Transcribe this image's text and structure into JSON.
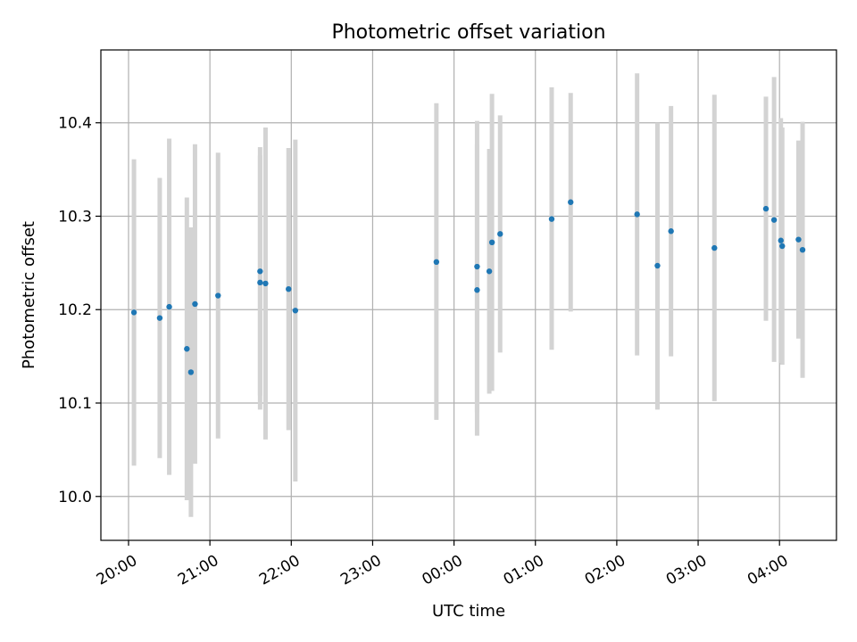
{
  "chart_data": {
    "type": "scatter",
    "title": "Photometric offset variation",
    "xlabel": "UTC time",
    "ylabel": "Photometric offset",
    "x_tick_labels": [
      "20:00",
      "21:00",
      "22:00",
      "23:00",
      "00:00",
      "01:00",
      "02:00",
      "03:00",
      "04:00"
    ],
    "x_tick_hours": [
      20,
      21,
      22,
      23,
      24,
      25,
      26,
      27,
      28
    ],
    "xlim_hours": [
      19.66,
      28.7
    ],
    "y_tick_labels": [
      "10.0",
      "10.1",
      "10.2",
      "10.3",
      "10.4"
    ],
    "y_ticks": [
      10.0,
      10.1,
      10.2,
      10.3,
      10.4
    ],
    "ylim": [
      9.953,
      10.478
    ],
    "grid": true,
    "marker_color": "#1f77b4",
    "errorbar_color": "#d3d3d3",
    "series": [
      {
        "points": [
          {
            "t": "20:04",
            "y": 10.197,
            "lo": 10.033,
            "hi": 10.361
          },
          {
            "t": "20:23",
            "y": 10.191,
            "lo": 10.041,
            "hi": 10.341
          },
          {
            "t": "20:30",
            "y": 10.203,
            "lo": 10.023,
            "hi": 10.383
          },
          {
            "t": "20:43",
            "y": 10.158,
            "lo": 9.996,
            "hi": 10.32
          },
          {
            "t": "20:46",
            "y": 10.133,
            "lo": 9.978,
            "hi": 10.288
          },
          {
            "t": "20:49",
            "y": 10.206,
            "lo": 10.035,
            "hi": 10.377
          },
          {
            "t": "21:06",
            "y": 10.215,
            "lo": 10.062,
            "hi": 10.368
          },
          {
            "t": "21:37",
            "y": 10.241,
            "lo": 10.108,
            "hi": 10.374
          },
          {
            "t": "21:37",
            "y": 10.229,
            "lo": 10.093,
            "hi": 10.365
          },
          {
            "t": "21:41",
            "y": 10.228,
            "lo": 10.061,
            "hi": 10.395
          },
          {
            "t": "21:58",
            "y": 10.222,
            "lo": 10.071,
            "hi": 10.373
          },
          {
            "t": "22:03",
            "y": 10.199,
            "lo": 10.016,
            "hi": 10.382
          },
          {
            "t": "23:47",
            "y": 10.251,
            "lo": 10.082,
            "hi": 10.421
          },
          {
            "t": "00:17",
            "y": 10.221,
            "lo": 10.065,
            "hi": 10.377
          },
          {
            "t": "00:17",
            "y": 10.246,
            "lo": 10.09,
            "hi": 10.402
          },
          {
            "t": "00:26",
            "y": 10.241,
            "lo": 10.11,
            "hi": 10.372
          },
          {
            "t": "00:28",
            "y": 10.272,
            "lo": 10.113,
            "hi": 10.431
          },
          {
            "t": "00:34",
            "y": 10.281,
            "lo": 10.154,
            "hi": 10.408
          },
          {
            "t": "01:12",
            "y": 10.297,
            "lo": 10.157,
            "hi": 10.438
          },
          {
            "t": "01:26",
            "y": 10.315,
            "lo": 10.198,
            "hi": 10.432
          },
          {
            "t": "02:15",
            "y": 10.302,
            "lo": 10.151,
            "hi": 10.453
          },
          {
            "t": "02:30",
            "y": 10.247,
            "lo": 10.093,
            "hi": 10.4
          },
          {
            "t": "02:40",
            "y": 10.284,
            "lo": 10.15,
            "hi": 10.418
          },
          {
            "t": "03:12",
            "y": 10.266,
            "lo": 10.102,
            "hi": 10.43
          },
          {
            "t": "03:50",
            "y": 10.308,
            "lo": 10.188,
            "hi": 10.428
          },
          {
            "t": "03:56",
            "y": 10.296,
            "lo": 10.144,
            "hi": 10.449
          },
          {
            "t": "04:01",
            "y": 10.274,
            "lo": 10.143,
            "hi": 10.405
          },
          {
            "t": "04:02",
            "y": 10.268,
            "lo": 10.141,
            "hi": 10.395
          },
          {
            "t": "04:14",
            "y": 10.275,
            "lo": 10.169,
            "hi": 10.381
          },
          {
            "t": "04:17",
            "y": 10.264,
            "lo": 10.127,
            "hi": 10.401
          }
        ]
      }
    ]
  }
}
